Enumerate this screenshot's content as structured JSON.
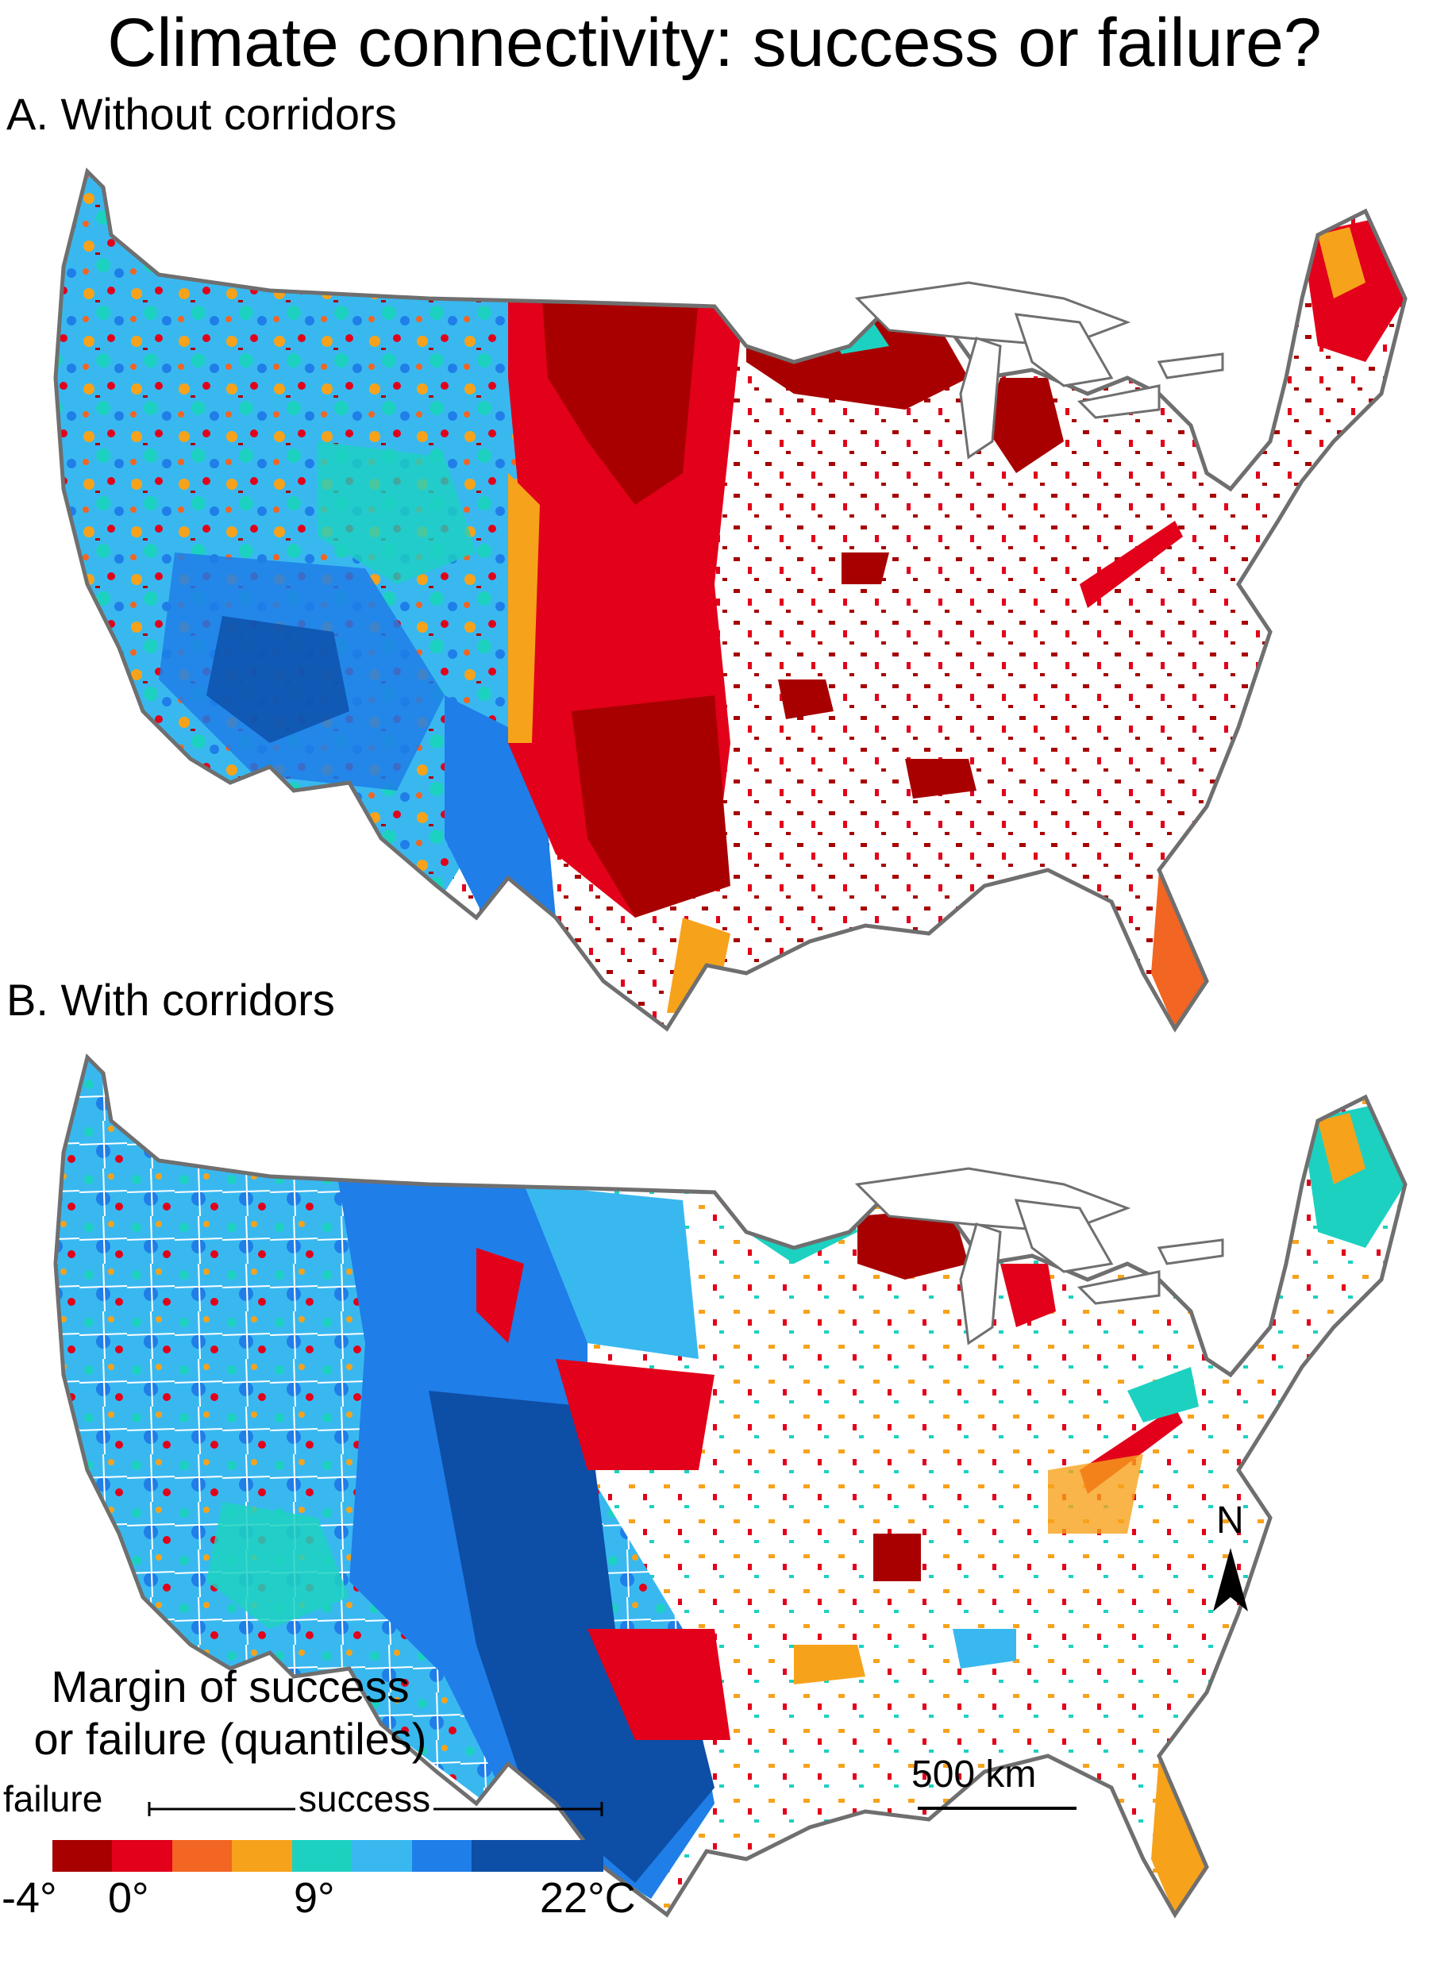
{
  "title": "Climate connectivity: success or failure?",
  "panels": [
    {
      "id": "A",
      "label": "A. Without corridors"
    },
    {
      "id": "B",
      "label": "B. With corridors"
    }
  ],
  "legend": {
    "title_line1": "Margin of success",
    "title_line2": "or failure (quantiles)",
    "failure_label": "failure",
    "success_label": "success",
    "ticks": [
      "-4°",
      "0°",
      "9°",
      "22°C"
    ],
    "colors": [
      "#a80000",
      "#e2001a",
      "#f26522",
      "#f7a21b",
      "#1dd1c1",
      "#39b8f0",
      "#1f7ee8",
      "#0d4ea6"
    ]
  },
  "palette": {
    "outline": "#6f6f6f",
    "deep_red": "#a80000",
    "red": "#e2001a",
    "orange": "#f26522",
    "light_orange": "#f7a21b",
    "teal": "#1dd1c1",
    "light_blue": "#39b8f0",
    "blue": "#1f7ee8",
    "dark_blue": "#0d4ea6"
  },
  "icons": {
    "north_arrow": "north-arrow-icon",
    "scale_bar": "scale-bar-icon"
  },
  "north_label": "N",
  "scale_label": "500 km"
}
